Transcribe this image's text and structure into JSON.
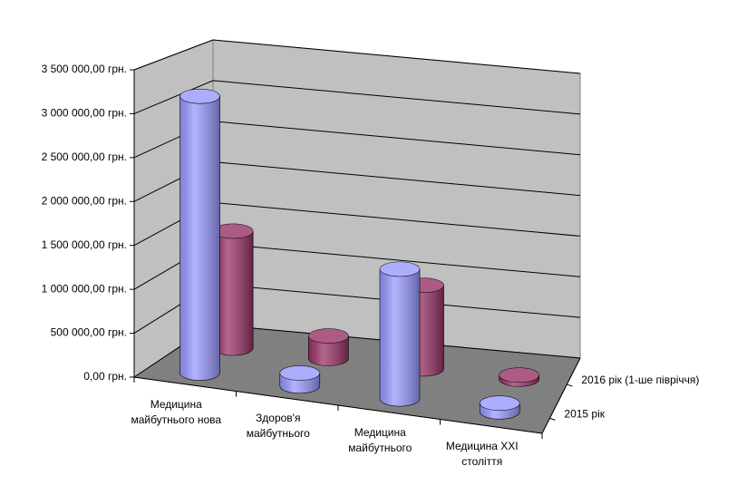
{
  "chart_data": {
    "type": "bar3d",
    "categories": [
      "Медицина майбутнього нова",
      "Здоров'я майбутнього",
      "Медицина майбутнього",
      "Медицина XXI століття"
    ],
    "series": [
      {
        "name": "2015 рік",
        "color": "#9999ff",
        "values": [
          3200000,
          150000,
          1500000,
          100000
        ]
      },
      {
        "name": "2016 рік (1-ше півріччя)",
        "color": "#993366",
        "values": [
          1400000,
          270000,
          1000000,
          50000
        ]
      }
    ],
    "ylim": [
      0,
      3500000
    ],
    "yticks": [
      {
        "value": 0,
        "label": "0,00 грн."
      },
      {
        "value": 500000,
        "label": "500 000,00 грн."
      },
      {
        "value": 1000000,
        "label": "1 000 000,00 грн."
      },
      {
        "value": 1500000,
        "label": "1 500 000,00 грн."
      },
      {
        "value": 2000000,
        "label": "2 000 000,00 грн."
      },
      {
        "value": 2500000,
        "label": "2 500 000,00 грн."
      },
      {
        "value": 3000000,
        "label": "3 000 000,00 грн."
      },
      {
        "value": 3500000,
        "label": "3 500 000,00 грн."
      }
    ],
    "grid": true
  }
}
